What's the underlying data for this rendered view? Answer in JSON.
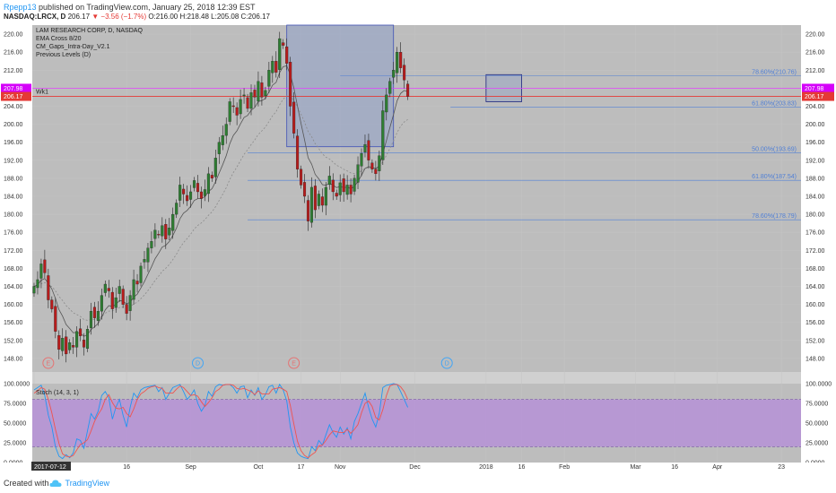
{
  "header": {
    "user": "Rpepp13",
    "published": " published on TradingView.com, January 25, 2018 12:39 EST",
    "symbol": "NASDAQ:LRCX, D",
    "last": " 206.17 ",
    "change": "▼ −3.56 (−1.7%)",
    "ohlc": " O:216.00 H:218.48 L:205.08 C:206.17"
  },
  "footer": {
    "created": "Created with",
    "brand": "TradingView"
  },
  "colors": {
    "bg": "#bdbdbd",
    "up": "#2e7d32",
    "down": "#b71c1c",
    "fib": "#4f7fd6",
    "stoch_k": "#2196f3",
    "stoch_d": "#ef5350",
    "stoch_band": "#b58fd8",
    "pivot": "#e040fb",
    "pivot_label": "#d500f9",
    "last_label": "#e53935"
  },
  "chart_data": [
    {
      "type": "candlestick",
      "title": "LAM RESEARCH CORP, D, NASDAQ",
      "indicators": [
        "EMA Cross 8/20",
        "CM_Gaps_Intra-Day_V2.1",
        "Previous Levels (D)"
      ],
      "ylim": [
        145,
        222
      ],
      "y_ticks": [
        148,
        152,
        156,
        160,
        164,
        168,
        172,
        176,
        180,
        184,
        188,
        192,
        196,
        200,
        204,
        208,
        212,
        216,
        220
      ],
      "y_tick_labels": [
        "148.00",
        "152.00",
        "156.00",
        "160.00",
        "164.00",
        "168.00",
        "172.00",
        "176.00",
        "180.00",
        "184.00",
        "188.00",
        "192.00",
        "196.00",
        "200.00",
        "204.00",
        "208.00",
        "212.00",
        "216.00",
        "220.00"
      ],
      "x_labels": [
        {
          "label": "2017-07-12",
          "bar": 0
        },
        {
          "label": "16",
          "bar": 26
        },
        {
          "label": "Sep",
          "bar": 44
        },
        {
          "label": "Oct",
          "bar": 63
        },
        {
          "label": "17",
          "bar": 75
        },
        {
          "label": "Nov",
          "bar": 86
        },
        {
          "label": "Dec",
          "bar": 107
        },
        {
          "label": "2018",
          "bar": 127
        },
        {
          "label": "16",
          "bar": 137
        },
        {
          "label": "Feb",
          "bar": 149
        },
        {
          "label": "Mar",
          "bar": 169
        },
        {
          "label": "16",
          "bar": 180
        },
        {
          "label": "Apr",
          "bar": 192
        },
        {
          "label": "23",
          "bar": 210
        }
      ],
      "bar_count": 216,
      "closes": [
        164.0,
        165.5,
        169.0,
        167.0,
        161.0,
        159.0,
        154.0,
        150.0,
        152.5,
        149.0,
        151.5,
        150.5,
        154.0,
        153.0,
        150.5,
        154.5,
        158.5,
        157.0,
        158.5,
        162.0,
        164.5,
        163.0,
        159.0,
        161.5,
        164.0,
        160.0,
        158.0,
        162.0,
        165.5,
        164.5,
        168.5,
        170.0,
        172.5,
        174.0,
        176.5,
        175.5,
        177.5,
        174.5,
        177.0,
        180.0,
        182.5,
        186.5,
        184.5,
        183.0,
        185.0,
        187.5,
        185.0,
        183.5,
        185.5,
        189.0,
        188.0,
        192.5,
        196.0,
        197.5,
        200.0,
        205.0,
        204.0,
        202.0,
        205.5,
        206.5,
        203.5,
        207.0,
        206.0,
        209.5,
        206.0,
        207.5,
        212.0,
        214.0,
        211.5,
        219.0,
        217.5,
        213.5,
        204.0,
        198.0,
        190.0,
        186.5,
        184.0,
        178.5,
        186.0,
        181.0,
        184.5,
        182.0,
        186.0,
        188.5,
        185.0,
        184.0,
        187.0,
        185.0,
        186.5,
        184.5,
        188.0,
        191.0,
        193.5,
        195.5,
        192.0,
        190.0,
        189.0,
        193.0,
        203.0,
        206.5,
        209.5,
        212.0,
        216.0,
        212.5,
        209.8,
        206.17
      ],
      "gap_box": {
        "from_bar": 71,
        "to_bar": 101,
        "low": 195,
        "high": 222
      },
      "recent_box": {
        "from_bar": 127,
        "to_bar": 137,
        "low": 205,
        "high": 211
      },
      "fib_levels": [
        {
          "label": "78.60%(210.76)",
          "value": 210.76
        },
        {
          "label": "61.80%(203.83)",
          "value": 203.83
        },
        {
          "label": "50.00%(193.69)",
          "value": 193.69
        },
        {
          "label": "61.80%(187.54)",
          "value": 187.54
        },
        {
          "label": "78.60%(178.79)",
          "value": 178.79
        }
      ],
      "previous_levels": [
        {
          "name": "Wk1",
          "value": 207.98,
          "label": "207.98"
        },
        {
          "name": "",
          "value": 206.17,
          "label": "206.17"
        }
      ],
      "event_markers": [
        {
          "letter": "E",
          "bar": 4
        },
        {
          "letter": "D",
          "bar": 46
        },
        {
          "letter": "E",
          "bar": 73
        },
        {
          "letter": "D",
          "bar": 116
        }
      ]
    },
    {
      "type": "line",
      "title": "Stoch (14, 3, 1)",
      "ylim": [
        0,
        100
      ],
      "y_ticks": [
        0,
        25,
        50,
        75,
        100
      ],
      "y_tick_labels": [
        "0.0000",
        "25.0000",
        "50.0000",
        "75.0000",
        "100.0000"
      ],
      "band": [
        20,
        80
      ],
      "series": [
        {
          "name": "%K",
          "values": [
            92,
            95,
            98,
            85,
            60,
            45,
            20,
            8,
            5,
            10,
            6,
            12,
            30,
            28,
            18,
            40,
            62,
            55,
            65,
            85,
            90,
            82,
            55,
            70,
            80,
            60,
            45,
            70,
            88,
            82,
            92,
            95,
            96,
            97,
            98,
            90,
            95,
            80,
            88,
            95,
            97,
            99,
            90,
            80,
            85,
            92,
            75,
            65,
            72,
            90,
            84,
            96,
            99,
            98,
            99,
            99,
            95,
            88,
            96,
            97,
            82,
            92,
            85,
            95,
            80,
            86,
            96,
            98,
            88,
            99,
            92,
            78,
            45,
            25,
            12,
            8,
            6,
            5,
            20,
            15,
            28,
            22,
            35,
            48,
            38,
            32,
            45,
            36,
            44,
            30,
            52,
            62,
            75,
            88,
            70,
            55,
            45,
            62,
            95,
            98,
            99,
            100,
            99,
            90,
            80,
            70
          ]
        },
        {
          "name": "%D",
          "values": [
            88,
            91,
            95,
            93,
            80,
            63,
            42,
            24,
            11,
            8,
            7,
            9,
            16,
            23,
            25,
            29,
            40,
            52,
            61,
            68,
            80,
            86,
            76,
            69,
            68,
            70,
            62,
            58,
            68,
            80,
            87,
            90,
            94,
            96,
            97,
            95,
            94,
            88,
            88,
            88,
            93,
            97,
            95,
            90,
            85,
            86,
            84,
            77,
            71,
            76,
            82,
            90,
            93,
            98,
            99,
            99,
            98,
            94,
            93,
            94,
            92,
            90,
            86,
            91,
            87,
            87,
            87,
            93,
            94,
            95,
            93,
            90,
            72,
            49,
            27,
            15,
            9,
            6,
            10,
            13,
            21,
            22,
            28,
            35,
            40,
            39,
            38,
            38,
            42,
            37,
            42,
            48,
            63,
            75,
            78,
            71,
            57,
            54,
            67,
            85,
            97,
            99,
            99,
            96,
            90,
            80
          ]
        }
      ]
    }
  ]
}
